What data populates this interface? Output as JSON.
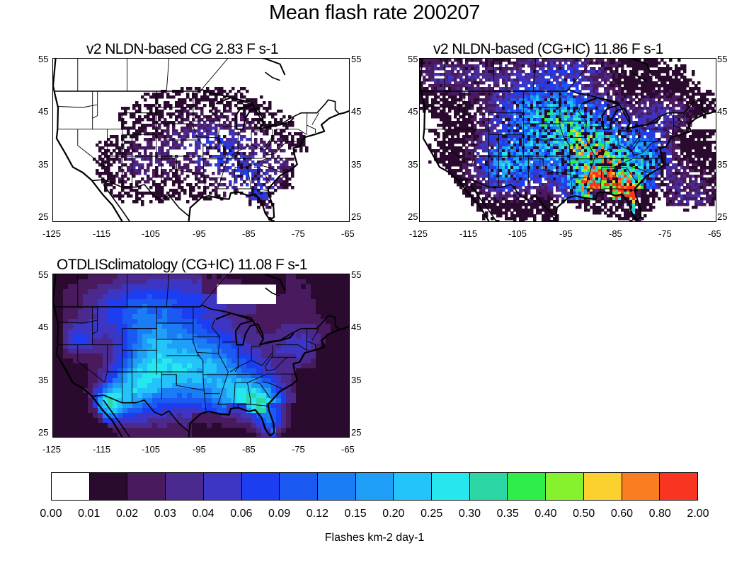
{
  "title": "Mean flash rate 200207",
  "panels": [
    {
      "title": "v2 NLDN-based CG  2.83 F s-1",
      "kind": "cg",
      "lat_labels": [
        "55",
        "45",
        "35",
        "25"
      ],
      "lon_labels": [
        "-125",
        "-115",
        "-105",
        "-95",
        "-85",
        "-75",
        "-65"
      ]
    },
    {
      "title": "v2 NLDN-based (CG+IC) 11.86 F s-1",
      "kind": "total",
      "lat_labels": [
        "55",
        "45",
        "35",
        "25"
      ],
      "lon_labels": [
        "-125",
        "-115",
        "-105",
        "-95",
        "-85",
        "-75",
        "-65"
      ]
    },
    {
      "title": "OTDLISclimatology (CG+IC) 11.08 F s-1",
      "kind": "clim",
      "lat_labels": [
        "55",
        "45",
        "35",
        "25"
      ],
      "lon_labels": [
        "-125",
        "-115",
        "-105",
        "-95",
        "-85",
        "-75",
        "-65"
      ]
    }
  ],
  "map_extent": {
    "lon": [
      -125,
      -65
    ],
    "lat": [
      25,
      55
    ]
  },
  "colorbar": {
    "labels": [
      "0.00",
      "0.01",
      "0.02",
      "0.03",
      "0.04",
      "0.06",
      "0.09",
      "0.12",
      "0.15",
      "0.20",
      "0.25",
      "0.30",
      "0.35",
      "0.40",
      "0.50",
      "0.60",
      "0.80",
      "2.00"
    ],
    "colors": [
      "#ffffff",
      "#2a0a2e",
      "#4a1a5e",
      "#4b2a8f",
      "#3d36c4",
      "#1c3ef0",
      "#1a5af2",
      "#1b7df5",
      "#1f9ff7",
      "#22c4f9",
      "#26e6ee",
      "#2cd6a5",
      "#30ee49",
      "#86f22e",
      "#fcd12f",
      "#fb7d22",
      "#f93421"
    ],
    "title": "Flashes km-2 day-1"
  }
}
